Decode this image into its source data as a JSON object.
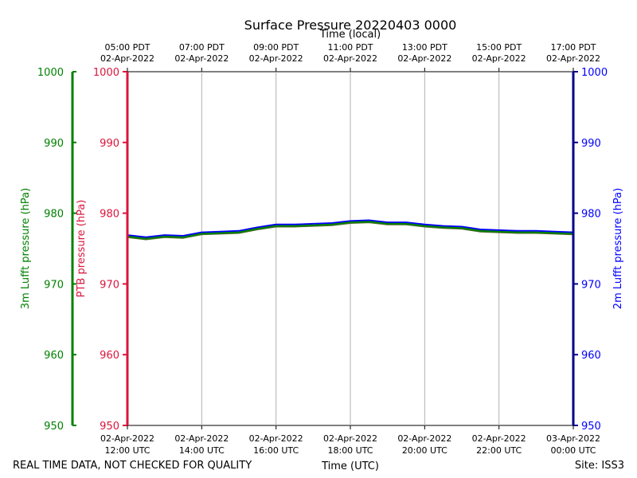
{
  "chart_data": {
    "type": "line",
    "title": "Surface Pressure 20220403 0000",
    "top_axis_title": "Time (local)",
    "bottom_axis_title": "Time (UTC)",
    "ylabel_left_outer": "3m Lufft pressure (hPa)",
    "ylabel_left_inner": "PTB pressure (hPa)",
    "ylabel_right": "2m Lufft pressure (hPa)",
    "ylim": [
      950,
      1000
    ],
    "yticks": [
      950,
      960,
      970,
      980,
      990,
      1000
    ],
    "xlim_hours_utc": [
      12,
      24
    ],
    "x_ticks_utc": [
      {
        "hour": 12,
        "date": "02-Apr-2022",
        "time": "12:00 UTC"
      },
      {
        "hour": 14,
        "date": "02-Apr-2022",
        "time": "14:00 UTC"
      },
      {
        "hour": 16,
        "date": "02-Apr-2022",
        "time": "16:00 UTC"
      },
      {
        "hour": 18,
        "date": "02-Apr-2022",
        "time": "18:00 UTC"
      },
      {
        "hour": 20,
        "date": "02-Apr-2022",
        "time": "20:00 UTC"
      },
      {
        "hour": 22,
        "date": "02-Apr-2022",
        "time": "22:00 UTC"
      },
      {
        "hour": 24,
        "date": "03-Apr-2022",
        "time": "00:00 UTC"
      }
    ],
    "x_ticks_local": [
      {
        "hour": 12,
        "time": "05:00 PDT",
        "date": "02-Apr-2022"
      },
      {
        "hour": 14,
        "time": "07:00 PDT",
        "date": "02-Apr-2022"
      },
      {
        "hour": 16,
        "time": "09:00 PDT",
        "date": "02-Apr-2022"
      },
      {
        "hour": 18,
        "time": "11:00 PDT",
        "date": "02-Apr-2022"
      },
      {
        "hour": 20,
        "time": "13:00 PDT",
        "date": "02-Apr-2022"
      },
      {
        "hour": 22,
        "time": "15:00 PDT",
        "date": "02-Apr-2022"
      },
      {
        "hour": 24,
        "time": "17:00 PDT",
        "date": "02-Apr-2022"
      }
    ],
    "grid": "vertical",
    "colors": {
      "green": "#008000",
      "crimson": "#dc143c",
      "blue": "#0000ff",
      "darkblue": "#00008b",
      "olive": "#556b2f",
      "grid": "#b0b0b0"
    },
    "series": [
      {
        "color": "#0000ff",
        "x": [
          12,
          12.5,
          13,
          13.5,
          14,
          14.5,
          15,
          15.5,
          16,
          16.5,
          17,
          17.5,
          18,
          18.5,
          19,
          19.5,
          20,
          20.5,
          21,
          21.5,
          22,
          22.5,
          23,
          23.5,
          24
        ],
        "y": [
          976.9,
          976.6,
          976.9,
          976.8,
          977.3,
          977.4,
          977.5,
          978.0,
          978.4,
          978.4,
          978.5,
          978.6,
          978.9,
          979.0,
          978.7,
          978.7,
          978.4,
          978.2,
          978.1,
          977.7,
          977.6,
          977.5,
          977.5,
          977.4,
          977.3
        ]
      },
      {
        "color": "#556b2f",
        "x": [
          12,
          12.5,
          13,
          13.5,
          14,
          14.5,
          15,
          15.5,
          16,
          16.5,
          17,
          17.5,
          18,
          18.5,
          19,
          19.5,
          20,
          20.5,
          21,
          21.5,
          22,
          22.5,
          23,
          23.5,
          24
        ],
        "y": [
          976.6,
          976.3,
          976.6,
          976.5,
          977.0,
          977.1,
          977.2,
          977.7,
          978.1,
          978.1,
          978.2,
          978.3,
          978.6,
          978.7,
          978.4,
          978.4,
          978.1,
          977.9,
          977.8,
          977.4,
          977.3,
          977.2,
          977.2,
          977.1,
          977.0
        ]
      },
      {
        "color": "#008000",
        "x": [
          12,
          12.5,
          13,
          13.5,
          14,
          14.5,
          15,
          15.5,
          16,
          16.5,
          17,
          17.5,
          18,
          18.5,
          19,
          19.5,
          20,
          20.5,
          21,
          21.5,
          22,
          22.5,
          23,
          23.5,
          24
        ],
        "y": [
          976.7,
          976.4,
          976.7,
          976.6,
          977.1,
          977.2,
          977.3,
          977.8,
          978.2,
          978.2,
          978.3,
          978.4,
          978.7,
          978.8,
          978.5,
          978.5,
          978.2,
          978.0,
          977.9,
          977.5,
          977.4,
          977.3,
          977.3,
          977.2,
          977.1
        ]
      }
    ]
  },
  "footer": {
    "quality_note": "REAL TIME DATA, NOT CHECKED FOR QUALITY",
    "site": "Site: ISS3"
  }
}
